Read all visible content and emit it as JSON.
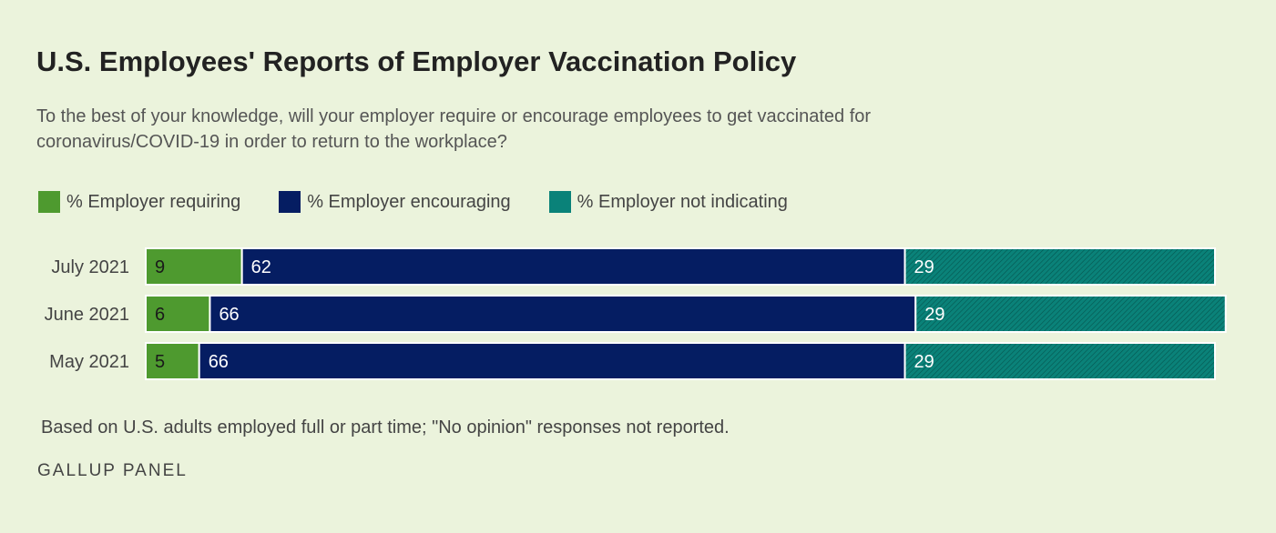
{
  "title": "U.S. Employees' Reports of Employer Vaccination Policy",
  "subtitle": "To the best of your knowledge, will your employer require or encourage employees to get vaccinated for coronavirus/COVID-19 in order to return to the workplace?",
  "footnote": "Based on U.S. adults employed full or part time; \"No opinion\" responses not reported.",
  "source": "GALLUP PANEL",
  "colors": {
    "requiring": "#4e9a2f",
    "encouraging": "#051d62",
    "not_indicating": "#0a8279",
    "background": "#ebf3dc"
  },
  "chart_data": {
    "type": "bar",
    "orientation": "horizontal",
    "stacked": true,
    "categories": [
      "July 2021",
      "June 2021",
      "May 2021"
    ],
    "series": [
      {
        "name": "% Employer requiring",
        "values": [
          9,
          6,
          5
        ]
      },
      {
        "name": "% Employer encouraging",
        "values": [
          62,
          66,
          66
        ]
      },
      {
        "name": "% Employer not indicating",
        "values": [
          29,
          29,
          29
        ]
      }
    ],
    "xlim": [
      0,
      100
    ],
    "grid": false,
    "legend_position": "top-left",
    "data_labels": true
  }
}
